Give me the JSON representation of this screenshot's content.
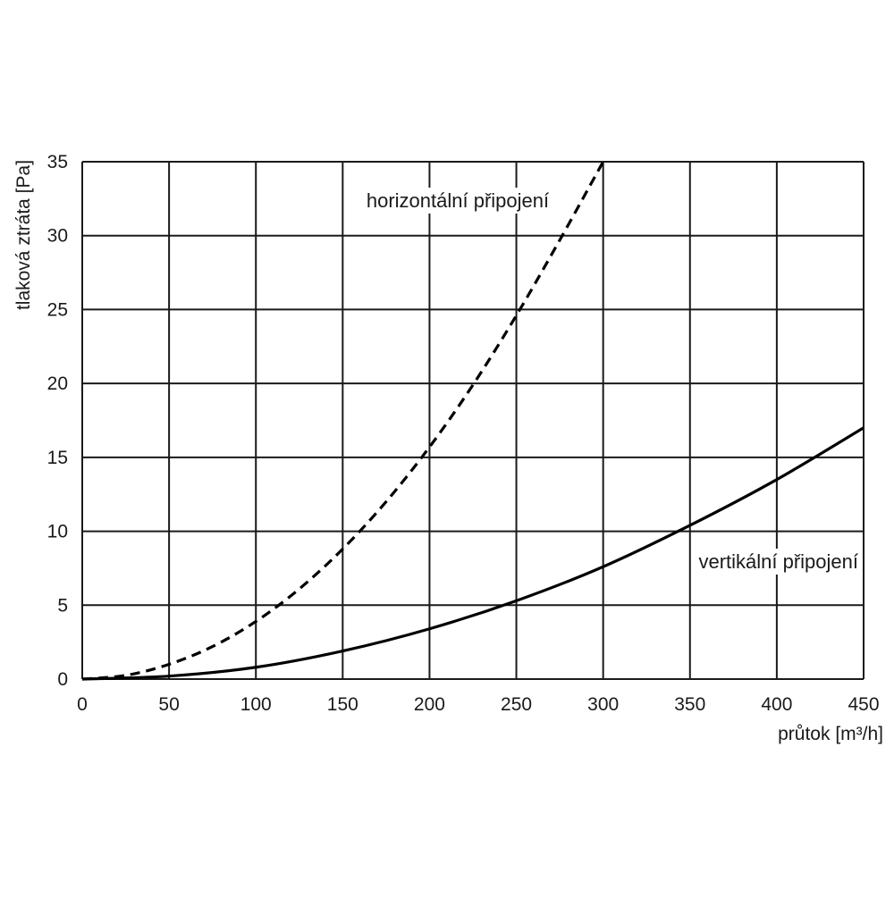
{
  "chart_data": {
    "type": "line",
    "title": "",
    "xlabel": "průtok [m³/h]",
    "ylabel": "tlaková ztráta [Pa]",
    "xlim": [
      0,
      450
    ],
    "ylim": [
      0,
      35
    ],
    "xticks": [
      0,
      50,
      100,
      150,
      200,
      250,
      300,
      350,
      400,
      450
    ],
    "yticks": [
      0,
      5,
      10,
      15,
      20,
      25,
      30,
      35
    ],
    "grid": true,
    "series": [
      {
        "name": "horizontální připojení",
        "style": "dashed",
        "color": "#000000",
        "x": [
          0,
          25,
          50,
          75,
          100,
          125,
          150,
          175,
          200,
          225,
          250,
          275,
          300
        ],
        "y": [
          0,
          0.25,
          1.0,
          2.2,
          3.9,
          6.1,
          8.8,
          12.0,
          15.7,
          19.9,
          24.6,
          29.7,
          35.0
        ]
      },
      {
        "name": "vertikální připojení",
        "style": "solid",
        "color": "#000000",
        "x": [
          0,
          50,
          100,
          150,
          200,
          250,
          300,
          350,
          400,
          450
        ],
        "y": [
          0,
          0.2,
          0.8,
          1.9,
          3.4,
          5.3,
          7.6,
          10.4,
          13.5,
          17.0
        ]
      }
    ]
  }
}
